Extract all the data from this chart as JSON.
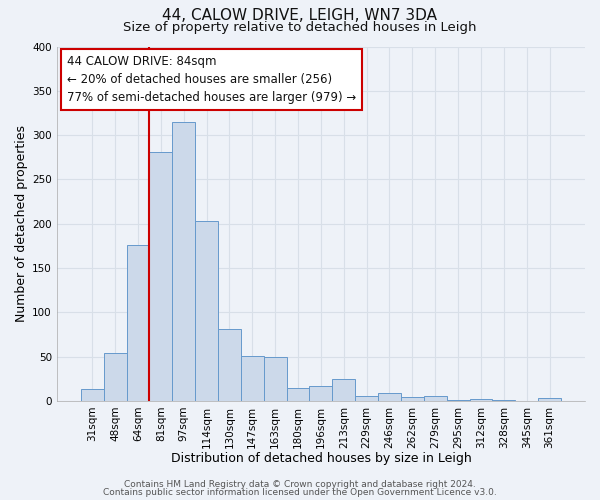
{
  "title": "44, CALOW DRIVE, LEIGH, WN7 3DA",
  "subtitle": "Size of property relative to detached houses in Leigh",
  "xlabel": "Distribution of detached houses by size in Leigh",
  "ylabel": "Number of detached properties",
  "bar_labels": [
    "31sqm",
    "48sqm",
    "64sqm",
    "81sqm",
    "97sqm",
    "114sqm",
    "130sqm",
    "147sqm",
    "163sqm",
    "180sqm",
    "196sqm",
    "213sqm",
    "229sqm",
    "246sqm",
    "262sqm",
    "279sqm",
    "295sqm",
    "312sqm",
    "328sqm",
    "345sqm",
    "361sqm"
  ],
  "bar_values": [
    13,
    54,
    176,
    281,
    315,
    203,
    81,
    51,
    50,
    15,
    17,
    25,
    6,
    9,
    4,
    5,
    1,
    2,
    1,
    0,
    3
  ],
  "bar_color": "#ccd9ea",
  "bar_edgecolor": "#6699cc",
  "vline_color": "#cc0000",
  "vline_x_index": 3,
  "ylim": [
    0,
    400
  ],
  "yticks": [
    0,
    50,
    100,
    150,
    200,
    250,
    300,
    350,
    400
  ],
  "annotation_line1": "44 CALOW DRIVE: 84sqm",
  "annotation_line2": "← 20% of detached houses are smaller (256)",
  "annotation_line3": "77% of semi-detached houses are larger (979) →",
  "annotation_box_edgecolor": "#cc0000",
  "annotation_box_facecolor": "#ffffff",
  "footer1": "Contains HM Land Registry data © Crown copyright and database right 2024.",
  "footer2": "Contains public sector information licensed under the Open Government Licence v3.0.",
  "bg_color": "#eef2f8",
  "grid_color": "#d8dfe8",
  "title_fontsize": 11,
  "subtitle_fontsize": 9.5,
  "axis_label_fontsize": 9,
  "tick_fontsize": 7.5,
  "annotation_fontsize": 8.5,
  "footer_fontsize": 6.5
}
